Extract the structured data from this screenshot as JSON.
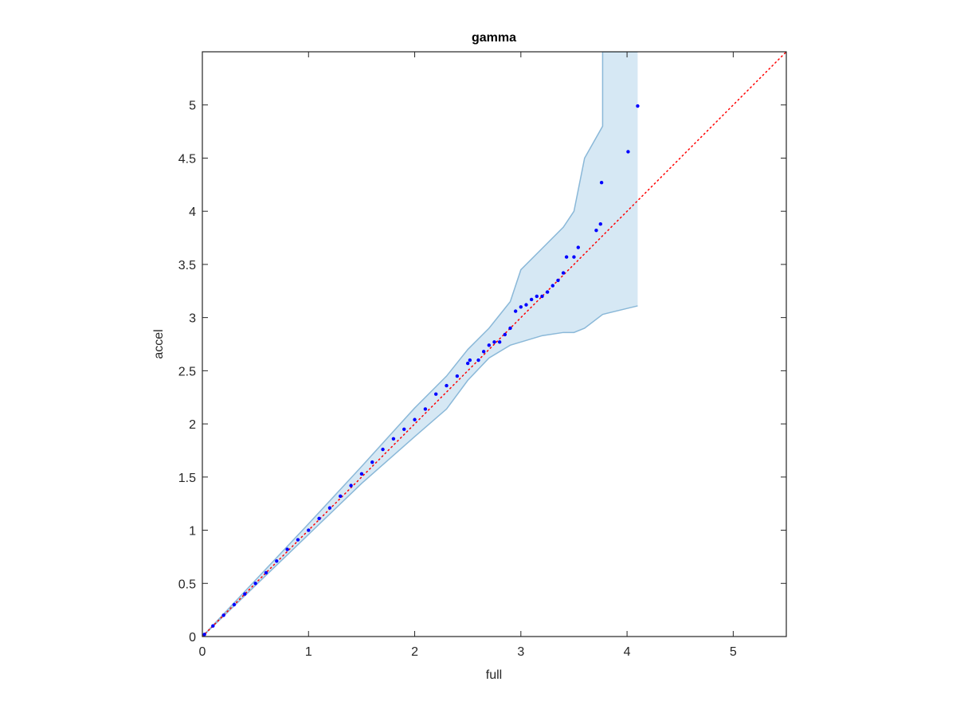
{
  "chart_data": {
    "type": "scatter",
    "title": "gamma",
    "x_label": "full",
    "y_label": "accel",
    "xlim": [
      0,
      5.5
    ],
    "ylim": [
      0,
      5.5
    ],
    "xticks": [
      0,
      1,
      2,
      3,
      4,
      5
    ],
    "yticks": [
      0,
      0.5,
      1,
      1.5,
      2,
      2.5,
      3,
      3.5,
      4,
      4.5,
      5
    ],
    "color": "#0000ff",
    "x": [
      0.02,
      0.1,
      0.2,
      0.3,
      0.4,
      0.5,
      0.6,
      0.7,
      0.8,
      0.9,
      1.0,
      1.1,
      1.2,
      1.3,
      1.4,
      1.5,
      1.6,
      1.7,
      1.8,
      1.9,
      2.0,
      2.1,
      2.2,
      2.3,
      2.4,
      2.5,
      2.52,
      2.6,
      2.65,
      2.7,
      2.75,
      2.8,
      2.85,
      2.9,
      2.95,
      3.0,
      3.05,
      3.1,
      3.15,
      3.2,
      3.25,
      3.3,
      3.35,
      3.4,
      3.43,
      3.5,
      3.54,
      3.71,
      3.75,
      3.76,
      4.01,
      4.1
    ],
    "values": [
      0.02,
      0.1,
      0.2,
      0.3,
      0.4,
      0.5,
      0.6,
      0.71,
      0.82,
      0.91,
      1.0,
      1.11,
      1.21,
      1.32,
      1.42,
      1.53,
      1.64,
      1.76,
      1.86,
      1.95,
      2.04,
      2.14,
      2.28,
      2.36,
      2.45,
      2.57,
      2.6,
      2.6,
      2.68,
      2.74,
      2.77,
      2.77,
      2.84,
      2.9,
      3.06,
      3.1,
      3.12,
      3.17,
      3.2,
      3.2,
      3.24,
      3.3,
      3.35,
      3.42,
      3.57,
      3.57,
      3.66,
      3.82,
      3.88,
      4.27,
      4.56,
      4.99
    ],
    "band": {
      "color": "#d6e8f4",
      "edge_color": "#8ab8d8",
      "x": [
        0,
        0.5,
        1,
        1.5,
        2,
        2.3,
        2.5,
        2.7,
        2.9,
        3.0,
        3.2,
        3.4,
        3.5,
        3.6,
        3.77,
        3.77,
        4.1
      ],
      "upper": [
        0,
        0.53,
        1.06,
        1.6,
        2.15,
        2.45,
        2.7,
        2.9,
        3.15,
        3.45,
        3.65,
        3.85,
        4.0,
        4.5,
        4.8,
        5.5,
        5.5
      ],
      "lower": [
        0,
        0.48,
        0.96,
        1.44,
        1.88,
        2.14,
        2.41,
        2.62,
        2.74,
        2.77,
        2.83,
        2.86,
        2.86,
        2.9,
        3.03,
        3.03,
        3.11
      ]
    },
    "reference_line": {
      "color": "#ff0000",
      "x": [
        0,
        5.5
      ],
      "y": [
        0,
        5.5
      ]
    }
  }
}
